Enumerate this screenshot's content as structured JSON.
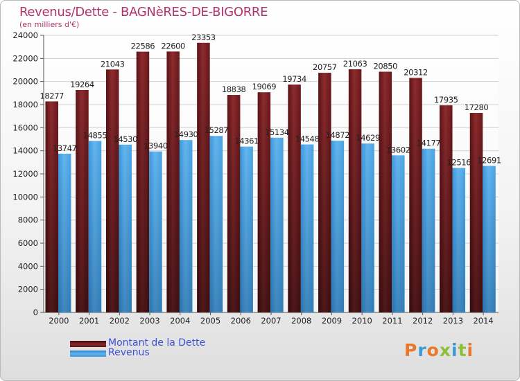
{
  "chart_data": {
    "type": "bar",
    "title": "Revenus/Dette - BAGNèRES-DE-BIGORRE",
    "subtitle": "(en milliers d'€)",
    "categories": [
      "2000",
      "2001",
      "2002",
      "2003",
      "2004",
      "2005",
      "2006",
      "2007",
      "2008",
      "2009",
      "2010",
      "2011",
      "2012",
      "2013",
      "2014"
    ],
    "series": [
      {
        "name": "Montant de la Dette",
        "color": "#7a1f22",
        "values": [
          18277,
          19264,
          21043,
          22586,
          22600,
          23353,
          18838,
          19069,
          19734,
          20757,
          21063,
          20850,
          20312,
          17935,
          17280
        ]
      },
      {
        "name": "Revenus",
        "color": "#4aa3e3",
        "values": [
          13747,
          14855,
          14530,
          13940,
          14930,
          15287,
          14361,
          15134,
          14548,
          14872,
          14629,
          13602,
          14177,
          12516,
          12691
        ]
      }
    ],
    "ylim": [
      0,
      24000
    ],
    "yticks": [
      0,
      2000,
      4000,
      6000,
      8000,
      10000,
      12000,
      14000,
      16000,
      18000,
      20000,
      22000,
      24000
    ],
    "legend_position": "bottom-left",
    "grid": true
  },
  "legend": {
    "debt_label": "Montant de la Dette",
    "revenue_label": "Revenus"
  },
  "logo": {
    "text": "Proxiti"
  }
}
